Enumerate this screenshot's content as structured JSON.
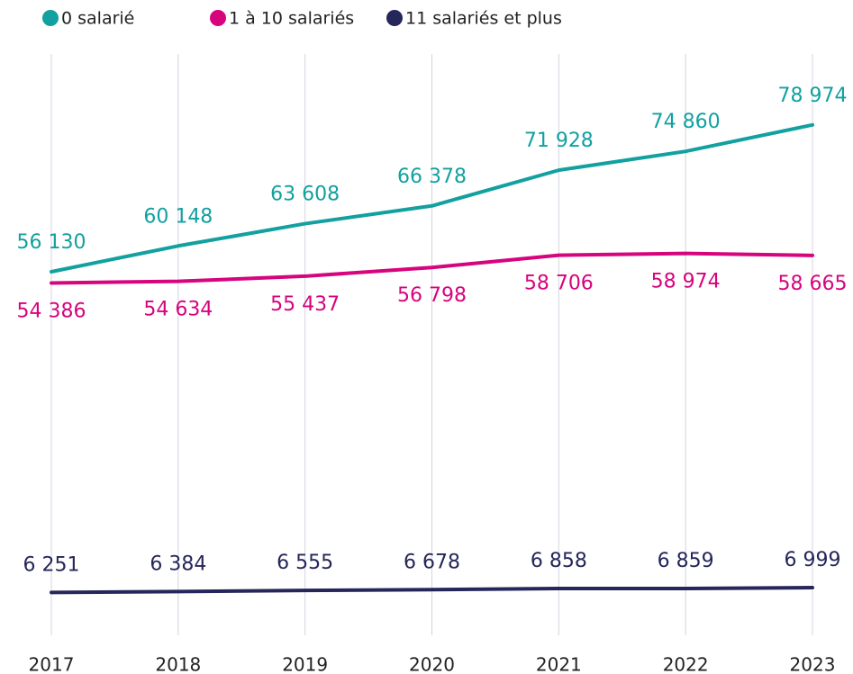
{
  "chart_data": {
    "type": "line",
    "categories": [
      "2017",
      "2018",
      "2019",
      "2020",
      "2021",
      "2022",
      "2023"
    ],
    "series": [
      {
        "name": "0 salarié",
        "color": "#12a0a0",
        "values": [
          56130,
          60148,
          63608,
          66378,
          71928,
          74860,
          78974
        ],
        "value_labels": [
          "56 130",
          "60 148",
          "63 608",
          "66 378",
          "71 928",
          "74 860",
          "78 974"
        ]
      },
      {
        "name": "1 à 10 salariés",
        "color": "#d6047d",
        "values": [
          54386,
          54634,
          55437,
          56798,
          58706,
          58974,
          58665
        ],
        "value_labels": [
          "54 386",
          "54 634",
          "55 437",
          "56 798",
          "58 706",
          "58 974",
          "58 665"
        ]
      },
      {
        "name": "11 salariés et plus",
        "color": "#25265a",
        "values": [
          6251,
          6384,
          6555,
          6678,
          6858,
          6859,
          6999
        ],
        "value_labels": [
          "6 251",
          "6 384",
          "6 555",
          "6 678",
          "6 858",
          "6 859",
          "6 999"
        ]
      }
    ],
    "ylim": [
      0,
      90000
    ],
    "grid": true
  }
}
